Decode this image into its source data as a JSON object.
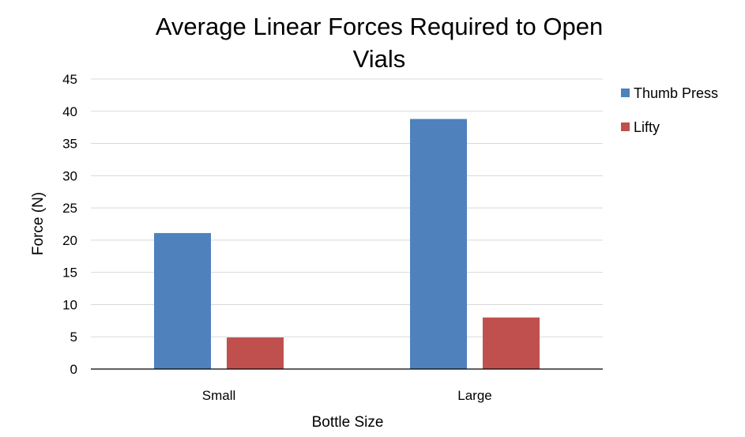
{
  "chart_data": {
    "type": "bar",
    "title_lines": [
      "Average Linear Forces Required to Open",
      "Vials"
    ],
    "xlabel": "Bottle Size",
    "ylabel": "Force (N)",
    "categories": [
      "Small",
      "Large"
    ],
    "series": [
      {
        "name": "Thumb Press",
        "values": [
          21.1,
          38.8
        ],
        "color": "#4f81bd"
      },
      {
        "name": "Lifty",
        "values": [
          4.9,
          8.0
        ],
        "color": "#c0504d"
      }
    ],
    "ylim": [
      0,
      45
    ],
    "yticks": [
      0,
      5,
      10,
      15,
      20,
      25,
      30,
      35,
      40,
      45
    ],
    "grid": true,
    "legend_position": "right"
  }
}
